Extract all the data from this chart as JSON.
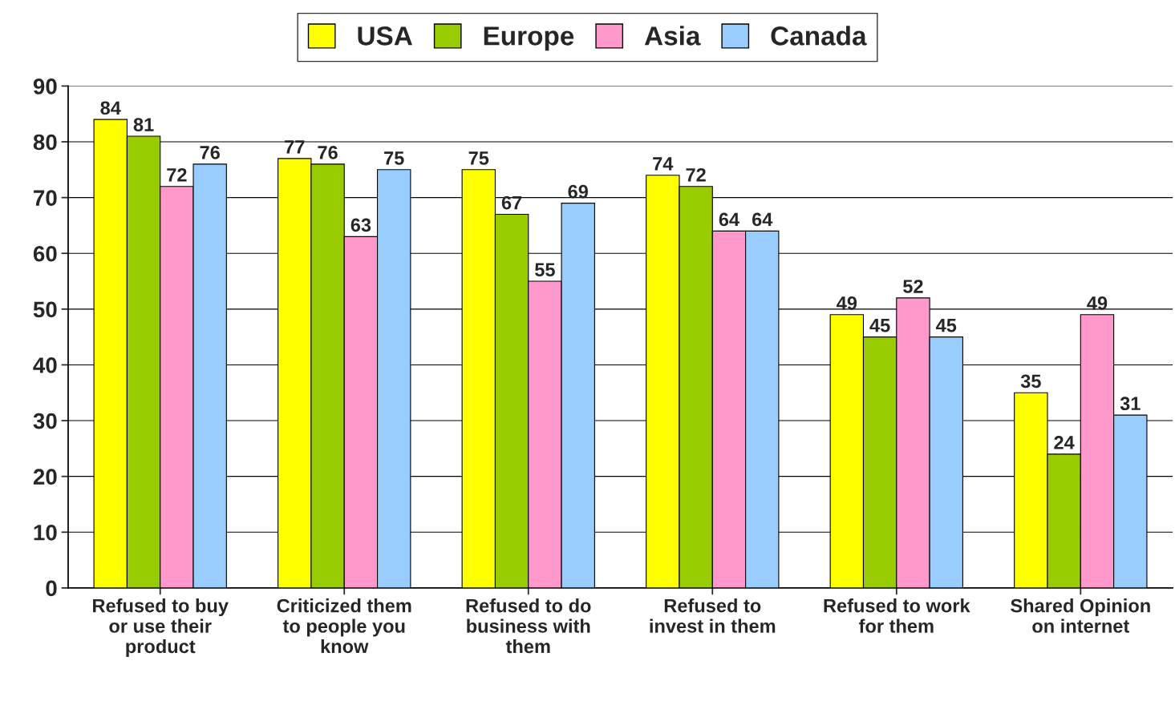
{
  "chart_data": {
    "type": "bar",
    "categories": [
      "Refused to buy or use their product",
      "Criticized them to people you know",
      "Refused to do business with them",
      "Refused to invest in them",
      "Refused to work for them",
      "Shared Opinion on internet"
    ],
    "series": [
      {
        "name": "USA",
        "color": "#ffff00",
        "values": [
          84,
          77,
          75,
          74,
          49,
          35
        ]
      },
      {
        "name": "Europe",
        "color": "#99cc00",
        "values": [
          81,
          76,
          67,
          72,
          45,
          24
        ]
      },
      {
        "name": "Asia",
        "color": "#ff99cc",
        "values": [
          72,
          63,
          55,
          64,
          52,
          49
        ]
      },
      {
        "name": "Canada",
        "color": "#99ccff",
        "values": [
          76,
          75,
          69,
          64,
          45,
          31
        ]
      }
    ],
    "ylim": [
      0,
      90
    ],
    "yticks": [
      0,
      10,
      20,
      30,
      40,
      50,
      60,
      70,
      80,
      90
    ],
    "grid": "y",
    "legend": "top",
    "data_labels": true
  }
}
